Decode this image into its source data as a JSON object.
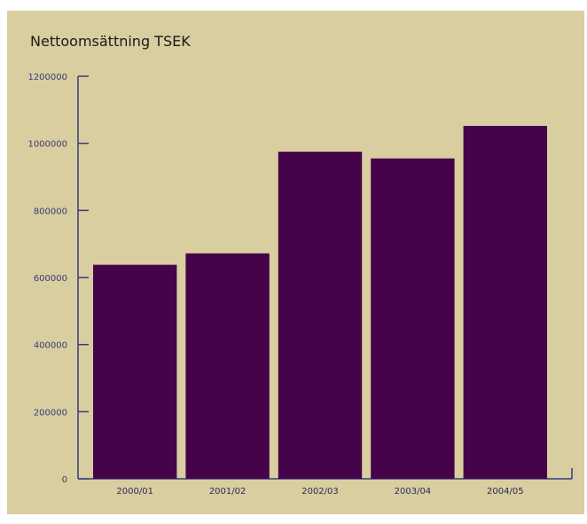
{
  "chart_data": {
    "type": "bar",
    "title": "Nettoomsättning TSEK",
    "xlabel": "",
    "ylabel": "",
    "categories": [
      "2000/01",
      "2001/02",
      "2002/03",
      "2003/04",
      "2004/05"
    ],
    "values": [
      638000,
      672000,
      975000,
      955000,
      1052000
    ],
    "ylim": [
      0,
      1200000
    ],
    "yticks": [
      "0",
      "200000",
      "400000",
      "600000",
      "800000",
      "1000000",
      "1200000"
    ],
    "grid": false,
    "bar_color": "#45034a",
    "axis_color": "#3a3a7a"
  }
}
